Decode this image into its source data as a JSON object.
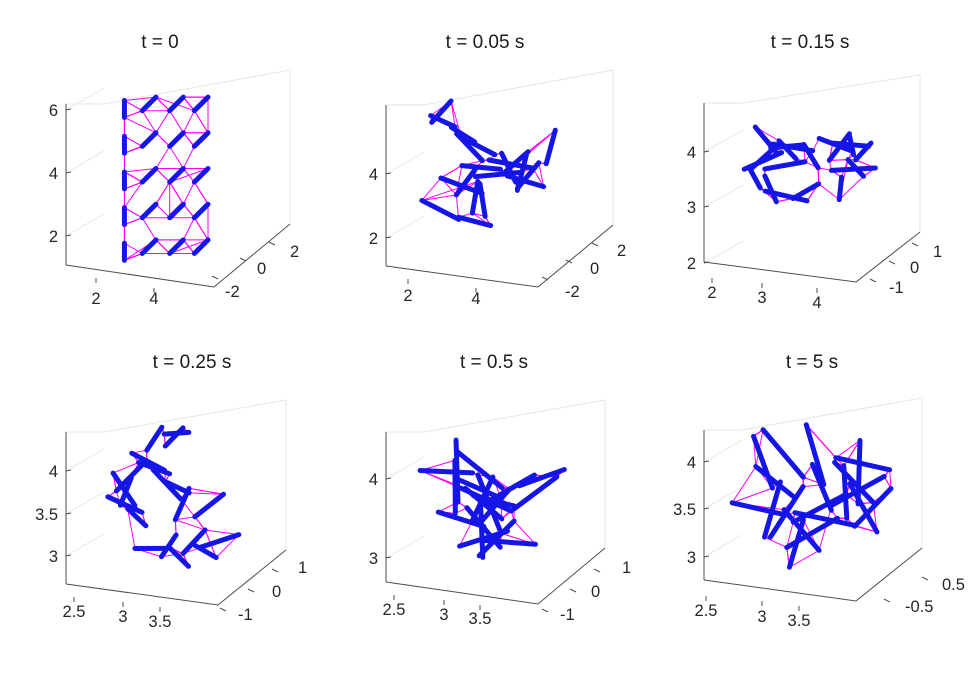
{
  "figure": {
    "colors": {
      "strut": "#1515e6",
      "cable": "#ff00ff",
      "axis": "#4d4d4d",
      "grid": "#e6e6e6",
      "text": "#262626"
    }
  },
  "chart_data": [
    {
      "type": "3d-line",
      "title": "t = 0",
      "z_ticks": [
        "2",
        "4",
        "6"
      ],
      "x_ticks": [
        "2",
        "4"
      ],
      "y_ticks": [
        "-2",
        "0",
        "2"
      ],
      "struts": "20 short struts on a regular 5 x 4 vertical lattice",
      "structure": "rectangular grid"
    },
    {
      "type": "3d-line",
      "title": "t = 0.05 s",
      "z_ticks": [
        "2",
        "4"
      ],
      "x_ticks": [
        "2",
        "4"
      ],
      "y_ticks": [
        "-2",
        "0",
        "2"
      ],
      "struts": "20 struts with random orientations",
      "structure": "square cluster"
    },
    {
      "type": "3d-line",
      "title": "t = 0.15 s",
      "z_ticks": [
        "2",
        "3",
        "4"
      ],
      "x_ticks": [
        "2",
        "3",
        "4"
      ],
      "y_ticks": [
        "-1",
        "0",
        "1"
      ],
      "struts": "20 struts",
      "structure": "flattened cluster"
    },
    {
      "type": "3d-line",
      "title": "t = 0.25 s",
      "z_ticks": [
        "3",
        "3.5",
        "4"
      ],
      "x_ticks": [
        "2.5",
        "3",
        "3.5"
      ],
      "y_ticks": [
        "-1",
        "0",
        "1"
      ],
      "struts": "20 struts",
      "structure": "irregular blob"
    },
    {
      "type": "3d-line",
      "title": "t = 0.5 s",
      "z_ticks": [
        "3",
        "4"
      ],
      "x_ticks": [
        "2.5",
        "3",
        "3.5"
      ],
      "y_ticks": [
        "-1",
        "0",
        "1"
      ],
      "struts": "20 struts",
      "structure": "near-spherical tensegrity"
    },
    {
      "type": "3d-line",
      "title": "t = 5 s",
      "z_ticks": [
        "3",
        "3.5",
        "4"
      ],
      "x_ticks": [
        "2.5",
        "3",
        "3.5"
      ],
      "y_ticks": [
        "-0.5",
        "0.5"
      ],
      "struts": "20 struts",
      "structure": "spherical tensegrity"
    }
  ]
}
